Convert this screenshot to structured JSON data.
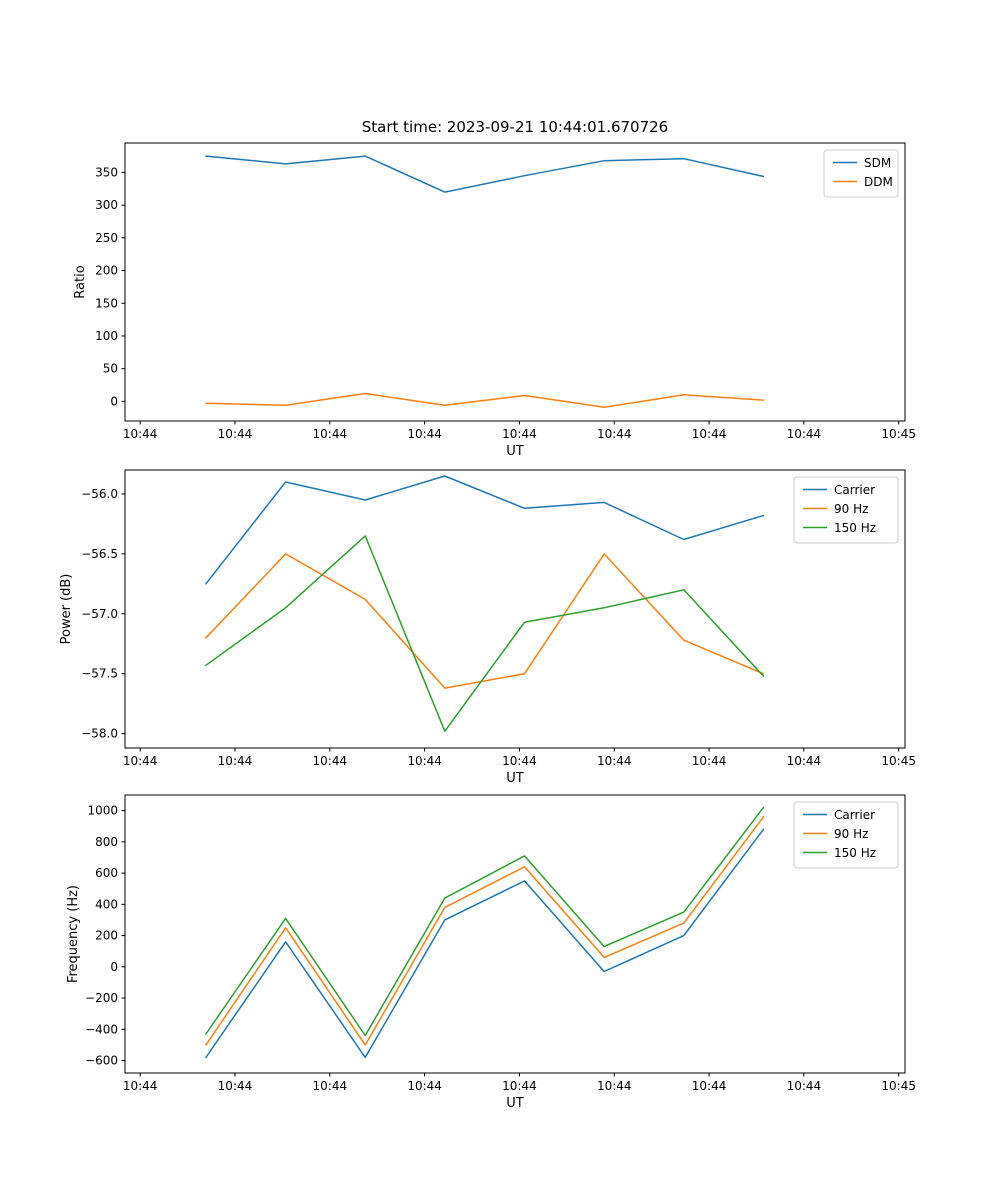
{
  "figure": {
    "title": "Start time: 2023-09-21 10:44:01.670726",
    "background": "#ffffff",
    "text_color": "#000000",
    "axes_color": "#000000",
    "legend_border_color": "#cccccc"
  },
  "chart_data": [
    {
      "type": "line",
      "name": "ratio",
      "xlabel": "UT",
      "ylabel": "Ratio",
      "xlim": [
        -1.2,
        60.5
      ],
      "ylim": [
        -30,
        395
      ],
      "x_ticks": [
        0,
        7.5,
        15,
        22.5,
        30,
        37.5,
        45,
        52.5,
        60
      ],
      "x_tick_labels": [
        "10:44",
        "10:44",
        "10:44",
        "10:44",
        "10:44",
        "10:44",
        "10:44",
        "10:44",
        "10:45"
      ],
      "y_ticks": [
        0,
        50,
        100,
        150,
        200,
        250,
        300,
        350
      ],
      "y_tick_labels": [
        "0",
        "50",
        "100",
        "150",
        "200",
        "250",
        "300",
        "350"
      ],
      "x": [
        5.2,
        11.5,
        17.8,
        24.1,
        30.4,
        36.7,
        43.0,
        49.3
      ],
      "grid": false,
      "legend_position": "top-right",
      "series": [
        {
          "name": "SDM",
          "color": "#1f77b4",
          "values": [
            375,
            363,
            375,
            320,
            345,
            368,
            371,
            344
          ]
        },
        {
          "name": "DDM",
          "color": "#ff7f0e",
          "values": [
            -3,
            -6,
            12,
            -6,
            9,
            -9,
            10,
            2
          ]
        }
      ]
    },
    {
      "type": "line",
      "name": "power",
      "xlabel": "UT",
      "ylabel": "Power (dB)",
      "xlim": [
        -1.2,
        60.5
      ],
      "ylim": [
        -58.12,
        -55.8
      ],
      "x_ticks": [
        0,
        7.5,
        15,
        22.5,
        30,
        37.5,
        45,
        52.5,
        60
      ],
      "x_tick_labels": [
        "10:44",
        "10:44",
        "10:44",
        "10:44",
        "10:44",
        "10:44",
        "10:44",
        "10:44",
        "10:45"
      ],
      "y_ticks": [
        -58.0,
        -57.5,
        -57.0,
        -56.5,
        -56.0
      ],
      "y_tick_labels": [
        "−58.0",
        "−57.5",
        "−57.0",
        "−56.5",
        "−56.0"
      ],
      "x": [
        5.2,
        11.5,
        17.8,
        24.1,
        30.4,
        36.7,
        43.0,
        49.3
      ],
      "grid": false,
      "legend_position": "top-right",
      "series": [
        {
          "name": "Carrier",
          "color": "#1f77b4",
          "values": [
            -56.75,
            -55.9,
            -56.05,
            -55.85,
            -56.12,
            -56.07,
            -56.38,
            -56.18
          ]
        },
        {
          "name": "90 Hz",
          "color": "#ff7f0e",
          "values": [
            -57.2,
            -56.5,
            -56.88,
            -57.62,
            -57.5,
            -56.5,
            -57.22,
            -57.5
          ]
        },
        {
          "name": "150 Hz",
          "color": "#2ca02c",
          "values": [
            -57.43,
            -56.95,
            -56.35,
            -57.98,
            -57.07,
            -56.95,
            -56.8,
            -57.52
          ]
        }
      ]
    },
    {
      "type": "line",
      "name": "frequency",
      "xlabel": "UT",
      "ylabel": "Frequency (Hz)",
      "xlim": [
        -1.2,
        60.5
      ],
      "ylim": [
        -680,
        1100
      ],
      "x_ticks": [
        0,
        7.5,
        15,
        22.5,
        30,
        37.5,
        45,
        52.5,
        60
      ],
      "x_tick_labels": [
        "10:44",
        "10:44",
        "10:44",
        "10:44",
        "10:44",
        "10:44",
        "10:44",
        "10:44",
        "10:45"
      ],
      "y_ticks": [
        -600,
        -400,
        -200,
        0,
        200,
        400,
        600,
        800,
        1000
      ],
      "y_tick_labels": [
        "−600",
        "−400",
        "−200",
        "0",
        "200",
        "400",
        "600",
        "800",
        "1000"
      ],
      "x": [
        5.2,
        11.5,
        17.8,
        24.1,
        30.4,
        36.7,
        43.0,
        49.3
      ],
      "grid": false,
      "legend_position": "top-right",
      "series": [
        {
          "name": "Carrier",
          "color": "#1f77b4",
          "values": [
            -580,
            160,
            -580,
            300,
            550,
            -30,
            200,
            880
          ]
        },
        {
          "name": "90 Hz",
          "color": "#ff7f0e",
          "values": [
            -500,
            250,
            -500,
            380,
            640,
            60,
            280,
            960
          ]
        },
        {
          "name": "150 Hz",
          "color": "#2ca02c",
          "values": [
            -430,
            310,
            -440,
            440,
            710,
            130,
            350,
            1020
          ]
        }
      ]
    }
  ]
}
